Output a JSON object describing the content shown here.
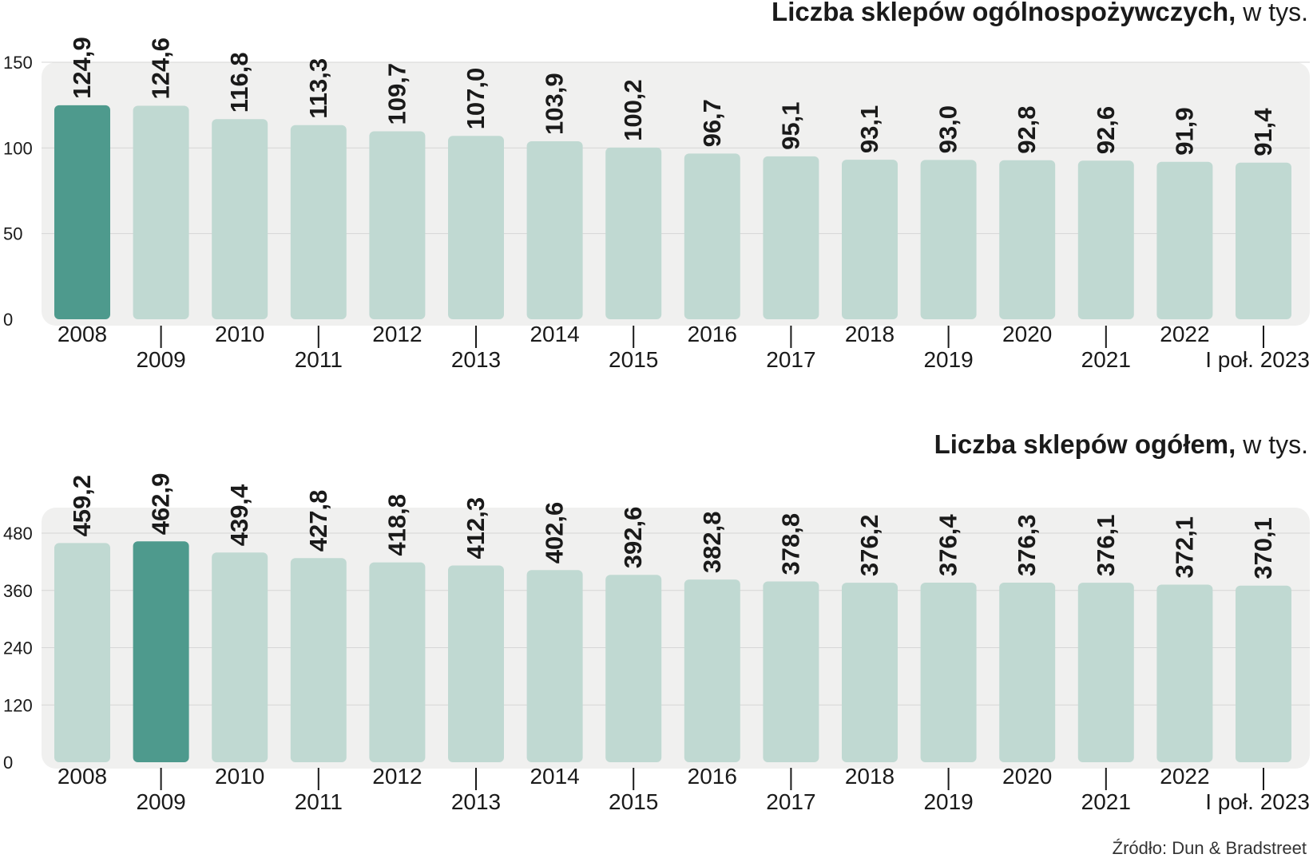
{
  "colors": {
    "bar": "#c0d9d2",
    "highlight": "#4e9a8d",
    "panel": "#f0f0ef",
    "grid": "#d6d6d6",
    "text": "#1a1a1a"
  },
  "source": "Źródło: Dun & Bradstreet",
  "chart_data": [
    {
      "type": "bar",
      "title_bold": "Liczba sklepów ogólnospożywczych,",
      "title_rest": " w tys.",
      "categories": [
        "2008",
        "2009",
        "2010",
        "2011",
        "2012",
        "2013",
        "2014",
        "2015",
        "2016",
        "2017",
        "2018",
        "2019",
        "2020",
        "2021",
        "2022",
        "I poł. 2023"
      ],
      "values": [
        124.9,
        124.6,
        116.8,
        113.3,
        109.7,
        107.0,
        103.9,
        100.2,
        96.7,
        95.1,
        93.1,
        93.0,
        92.8,
        92.6,
        91.9,
        91.4
      ],
      "value_labels": [
        "124,9",
        "124,6",
        "116,8",
        "113,3",
        "109,7",
        "107,0",
        "103,9",
        "100,2",
        "96,7",
        "95,1",
        "93,1",
        "93,0",
        "92,8",
        "92,6",
        "91,9",
        "91,4"
      ],
      "highlight_index": 0,
      "yticks": [
        0,
        50,
        100,
        150
      ],
      "ylim": [
        0,
        150
      ],
      "grid": true
    },
    {
      "type": "bar",
      "title_bold": "Liczba sklepów ogółem,",
      "title_rest": " w tys.",
      "categories": [
        "2008",
        "2009",
        "2010",
        "2011",
        "2012",
        "2013",
        "2014",
        "2015",
        "2016",
        "2017",
        "2018",
        "2019",
        "2020",
        "2021",
        "2022",
        "I poł. 2023"
      ],
      "values": [
        459.2,
        462.9,
        439.4,
        427.8,
        418.8,
        412.3,
        402.6,
        392.6,
        382.8,
        378.8,
        376.2,
        376.4,
        376.3,
        376.1,
        372.1,
        370.1
      ],
      "value_labels": [
        "459,2",
        "462,9",
        "439,4",
        "427,8",
        "418,8",
        "412,3",
        "402,6",
        "392,6",
        "382,8",
        "378,8",
        "376,2",
        "376,4",
        "376,3",
        "376,1",
        "372,1",
        "370,1"
      ],
      "highlight_index": 1,
      "yticks": [
        0,
        120,
        240,
        360,
        480
      ],
      "ylim": [
        0,
        480
      ],
      "grid": true
    }
  ]
}
